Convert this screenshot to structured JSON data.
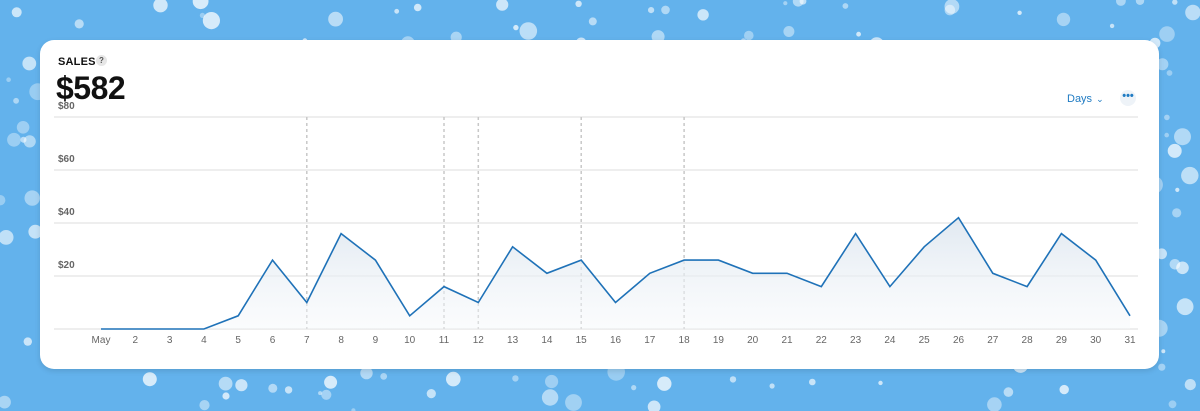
{
  "card": {
    "title": "SALES",
    "help_icon": "?",
    "amount": "$582",
    "period_label": "Days",
    "period_chevron": "⌄",
    "more_icon": "•••"
  },
  "colors": {
    "background": "#63b2ec",
    "line": "#1f72b8",
    "accent": "#1f7bc3",
    "grid": "#dddddd",
    "label": "#666666"
  },
  "chart_data": {
    "type": "area",
    "title": "",
    "xlabel": "",
    "ylabel": "",
    "ylim": [
      0,
      80
    ],
    "y_ticks": [
      "$20",
      "$40",
      "$60",
      "$80"
    ],
    "y_tick_values": [
      20,
      40,
      60,
      80
    ],
    "x_labels": [
      "May",
      "2",
      "3",
      "4",
      "5",
      "6",
      "7",
      "8",
      "9",
      "10",
      "11",
      "12",
      "13",
      "14",
      "15",
      "16",
      "17",
      "18",
      "19",
      "20",
      "21",
      "22",
      "23",
      "24",
      "25",
      "26",
      "27",
      "28",
      "29",
      "30",
      "31"
    ],
    "series": [
      {
        "values": [
          0,
          0,
          0,
          0,
          5,
          26,
          10,
          36,
          26,
          5,
          16,
          10,
          31,
          21,
          26,
          10,
          21,
          26,
          26,
          21,
          21,
          16,
          36,
          16,
          31,
          42,
          21,
          16,
          36,
          26,
          5
        ]
      }
    ],
    "markers_at": [
      "7",
      "11",
      "12",
      "15",
      "18"
    ],
    "grid": true
  }
}
